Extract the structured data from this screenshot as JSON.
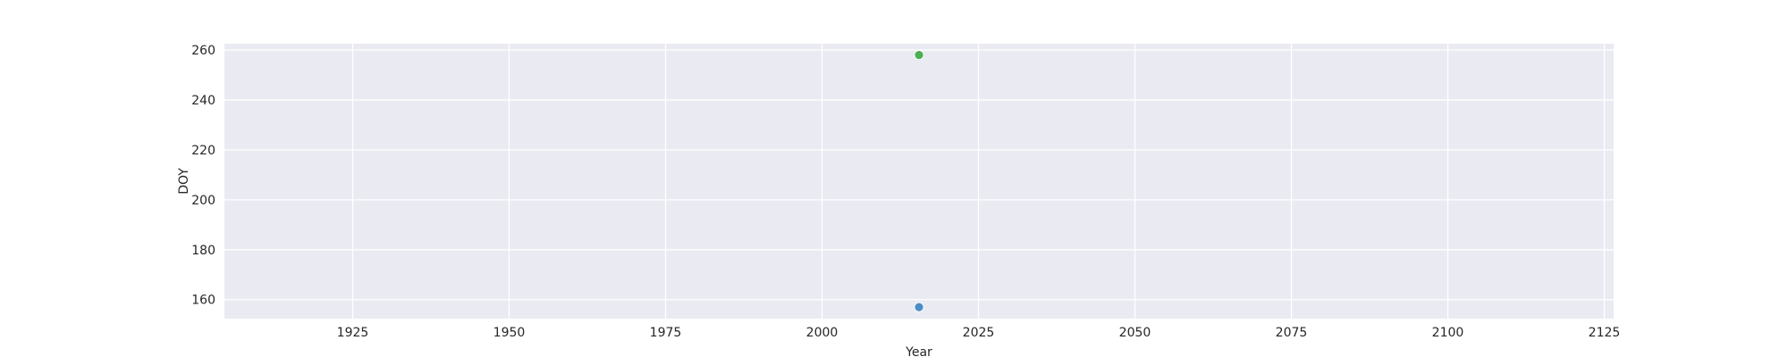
{
  "chart_data": {
    "type": "scatter",
    "xlabel": "Year",
    "ylabel": "DOY",
    "xlim": [
      1904.5,
      2126.5
    ],
    "ylim": [
      152.4,
      262.5
    ],
    "xticks": [
      1925,
      1950,
      1975,
      2000,
      2025,
      2050,
      2075,
      2100,
      2125
    ],
    "yticks": [
      160,
      180,
      200,
      220,
      240,
      260
    ],
    "grid": true,
    "legend": "none",
    "background_color": "#eaeaf2",
    "series": [
      {
        "color": "#4c8cc7",
        "points": [
          {
            "x": 2015.5,
            "y": 157
          }
        ]
      },
      {
        "color": "#4caf50",
        "points": [
          {
            "x": 2015.5,
            "y": 258
          }
        ]
      }
    ]
  }
}
